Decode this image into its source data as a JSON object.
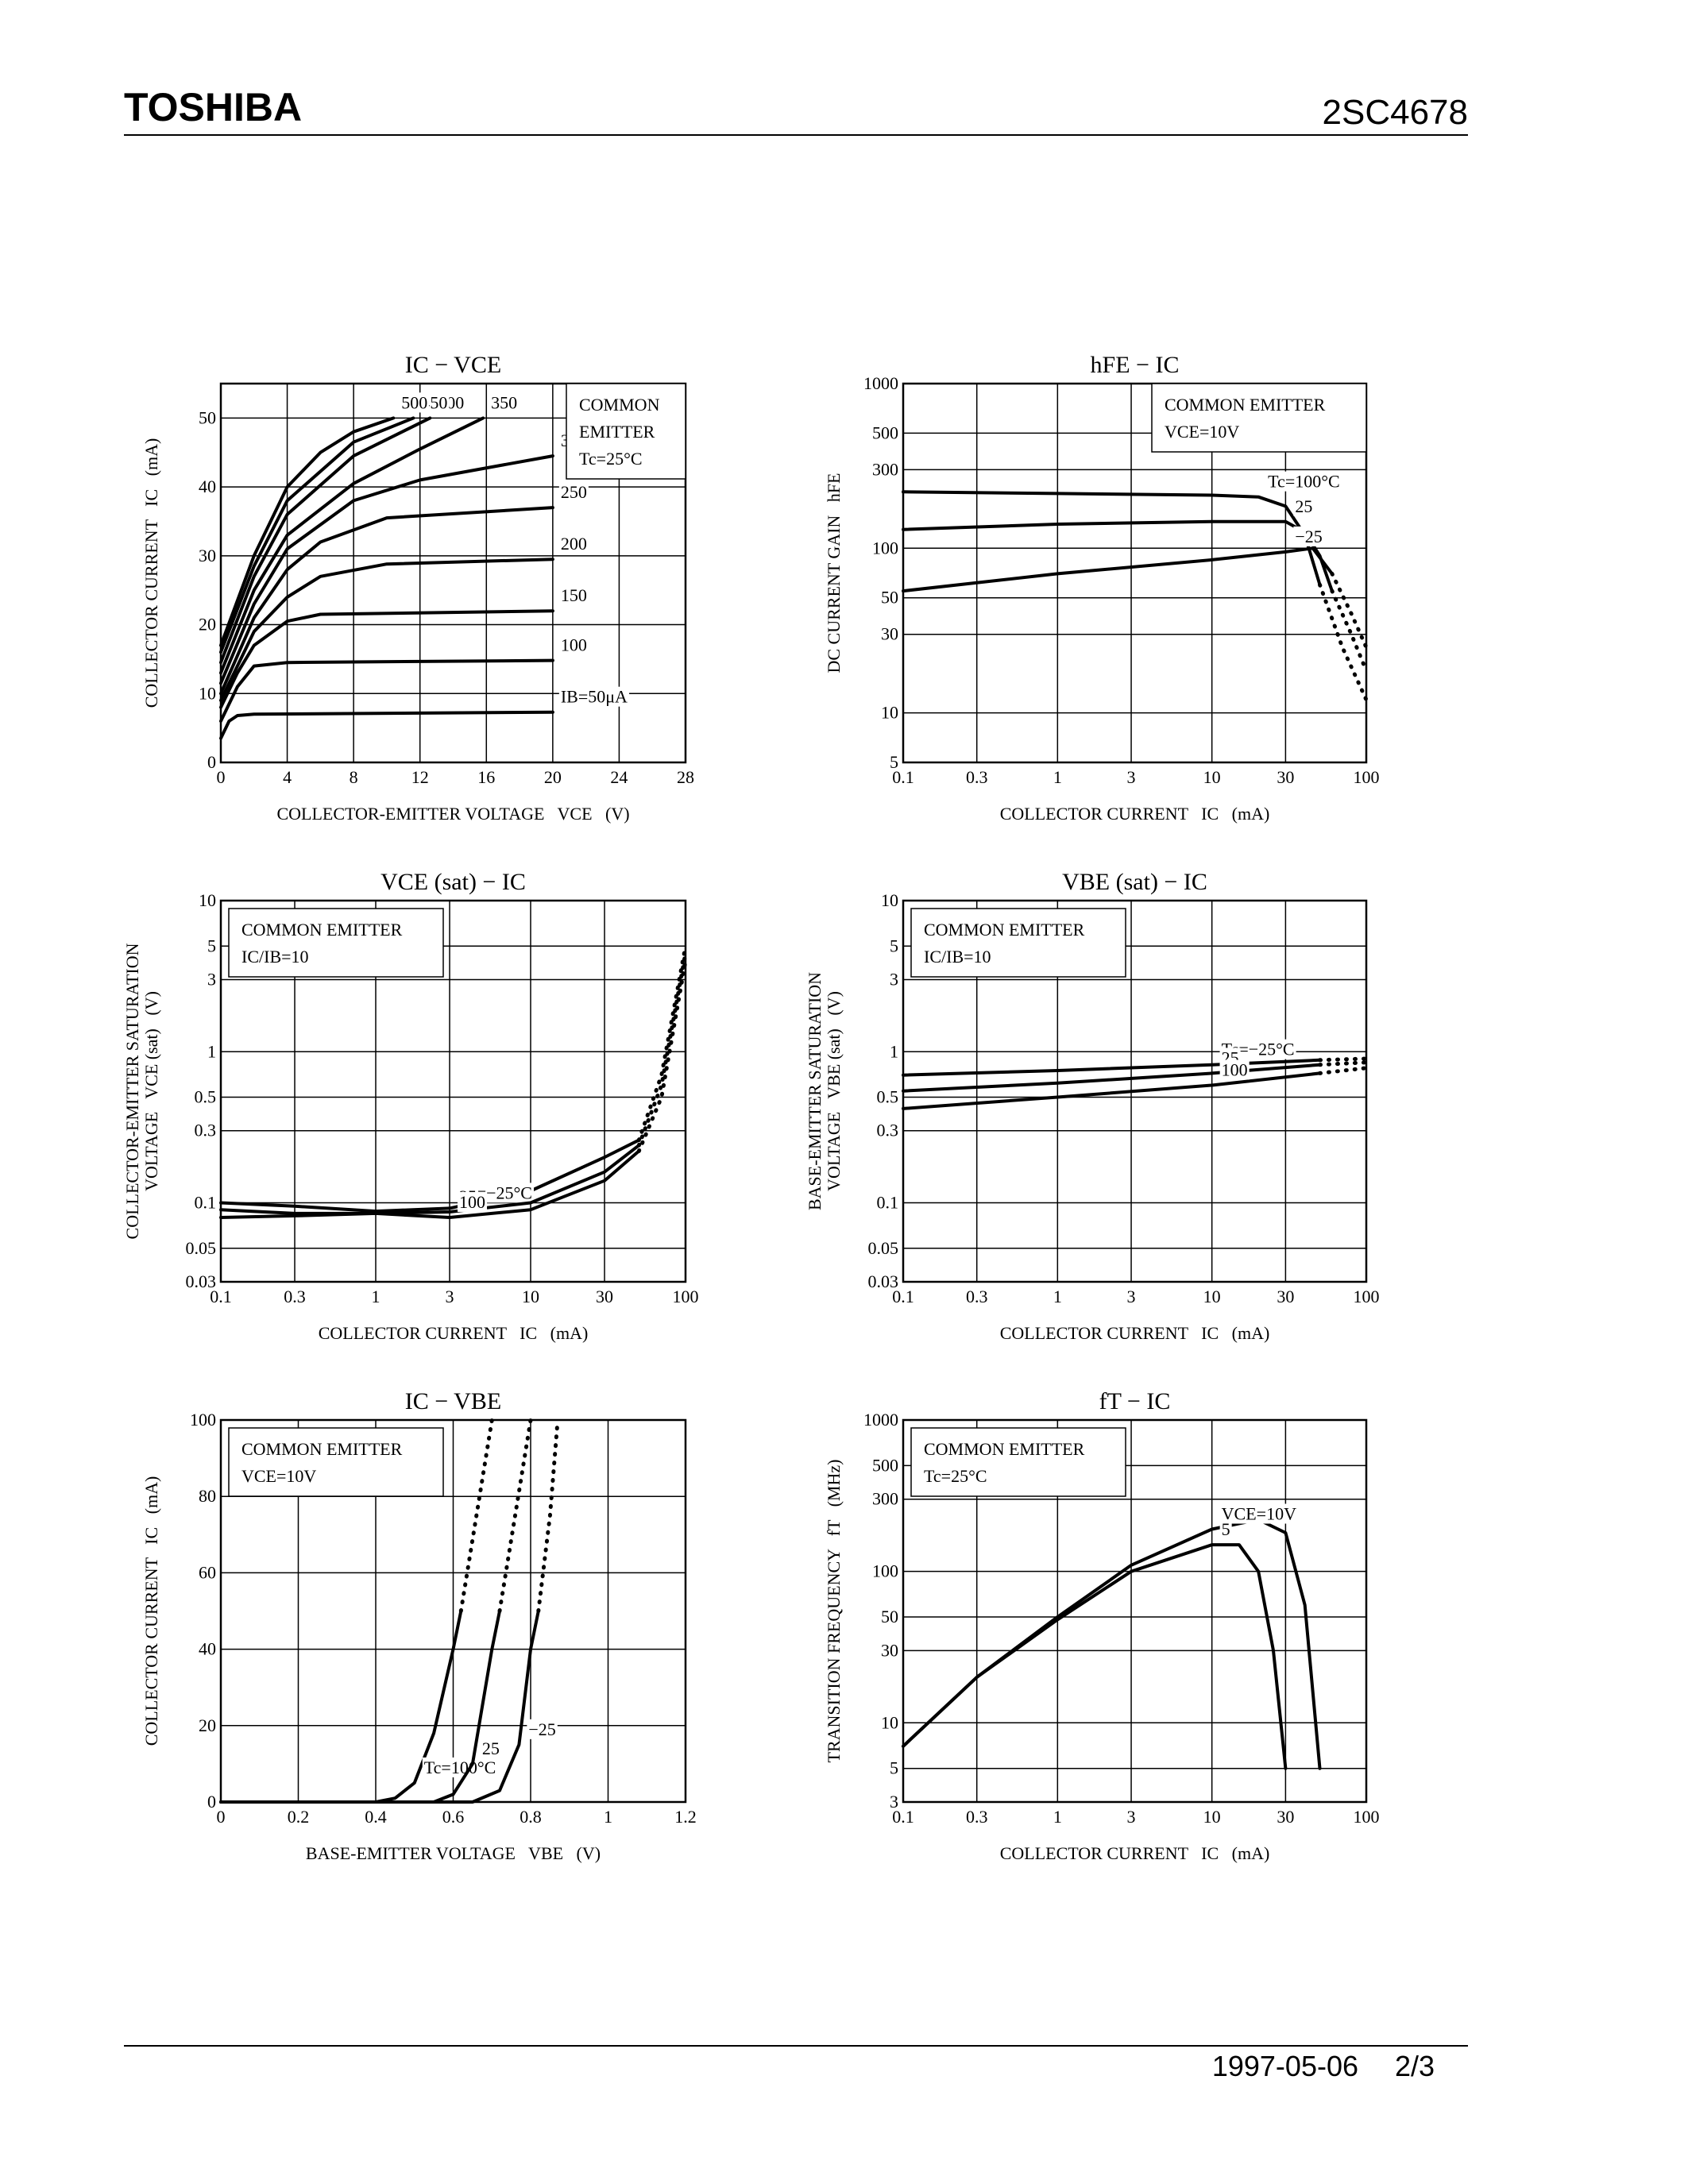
{
  "header": {
    "brand": "TOSHIBA",
    "part": "2SC4678"
  },
  "footer": {
    "date": "1997-05-06",
    "page": "2/3"
  },
  "chart_data": [
    {
      "type": "line",
      "title": "IC − VCE",
      "xlabel": "COLLECTOR-EMITTER VOLTAGE   VCE   (V)",
      "ylabel": [
        "COLLECTOR CURRENT   IC   (mA)"
      ],
      "note": [
        "COMMON",
        "EMITTER",
        "Tc=25°C"
      ],
      "xscale": "linear",
      "yscale": "linear",
      "xlim": [
        0,
        28
      ],
      "ylim": [
        0,
        55
      ],
      "xticks": [
        0,
        4,
        8,
        12,
        16,
        20,
        24,
        28
      ],
      "yticks": [
        0,
        10,
        20,
        30,
        40,
        50
      ],
      "grid": true,
      "series": [
        {
          "name": "IB=50μA",
          "color": "#000000",
          "x": [
            0,
            0.5,
            1,
            2,
            20
          ],
          "values": [
            3.5,
            6,
            6.8,
            7,
            7.3
          ]
        },
        {
          "name": "100",
          "color": "#000000",
          "x": [
            0,
            1,
            2,
            4,
            20
          ],
          "values": [
            6,
            11,
            14,
            14.5,
            14.8
          ]
        },
        {
          "name": "150",
          "color": "#000000",
          "x": [
            0,
            1,
            2,
            4,
            6,
            20
          ],
          "values": [
            8,
            13,
            17,
            20.5,
            21.5,
            22
          ]
        },
        {
          "name": "200",
          "color": "#000000",
          "x": [
            0,
            2,
            4,
            6,
            10,
            20
          ],
          "values": [
            9,
            19,
            24,
            27,
            28.8,
            29.5
          ]
        },
        {
          "name": "250",
          "color": "#000000",
          "x": [
            0,
            2,
            4,
            6,
            10,
            20
          ],
          "values": [
            10,
            21,
            28,
            32,
            35.5,
            37
          ]
        },
        {
          "name": "300",
          "color": "#000000",
          "x": [
            0,
            2,
            4,
            8,
            12,
            20
          ],
          "values": [
            11.5,
            23,
            31,
            38,
            41,
            44.5
          ]
        },
        {
          "name": "350",
          "color": "#000000",
          "x": [
            0,
            2,
            4,
            8,
            12,
            15.8
          ],
          "values": [
            13,
            25,
            33,
            40.5,
            45.5,
            50
          ]
        },
        {
          "name": "400",
          "color": "#000000",
          "x": [
            0,
            2,
            4,
            8,
            12.6
          ],
          "values": [
            14.5,
            27,
            36,
            44.5,
            50
          ]
        },
        {
          "name": "450",
          "color": "#000000",
          "x": [
            0,
            2,
            4,
            8,
            11.6
          ],
          "values": [
            16,
            28.5,
            38,
            46.5,
            50
          ]
        },
        {
          "name": "500",
          "color": "#000000",
          "x": [
            0,
            2,
            4,
            6,
            8,
            10.4
          ],
          "values": [
            17,
            30,
            40,
            45,
            48,
            50
          ]
        }
      ]
    },
    {
      "type": "line",
      "title": "hFE − IC",
      "xlabel": "COLLECTOR CURRENT   IC   (mA)",
      "ylabel": [
        "DC CURRENT GAIN   hFE"
      ],
      "note": [
        "COMMON EMITTER",
        "VCE=10V"
      ],
      "xscale": "log",
      "yscale": "log",
      "xlim": [
        0.1,
        100
      ],
      "ylim": [
        5,
        1000
      ],
      "xticks": [
        0.1,
        0.3,
        1,
        3,
        10,
        30,
        100
      ],
      "yticks": [
        5,
        10,
        30,
        50,
        100,
        300,
        500,
        1000
      ],
      "grid": true,
      "series": [
        {
          "name": "Tc=100°C",
          "color": "#000000",
          "x": [
            0.1,
            1,
            10,
            20,
            30,
            40,
            50
          ],
          "values": [
            220,
            215,
            210,
            205,
            180,
            120,
            60
          ]
        },
        {
          "color": "#000000",
          "style": "dotted",
          "x": [
            50,
            70,
            100
          ],
          "values": [
            60,
            25,
            12
          ]
        },
        {
          "name": "25",
          "color": "#000000",
          "x": [
            0.1,
            1,
            10,
            30,
            40,
            50,
            60
          ],
          "values": [
            130,
            140,
            145,
            145,
            125,
            90,
            55
          ]
        },
        {
          "color": "#000000",
          "style": "dotted",
          "x": [
            60,
            80,
            100
          ],
          "values": [
            55,
            30,
            18
          ]
        },
        {
          "name": "−25",
          "color": "#000000",
          "x": [
            0.1,
            1,
            10,
            30,
            45,
            60
          ],
          "values": [
            55,
            70,
            85,
            95,
            100,
            70
          ]
        },
        {
          "color": "#000000",
          "style": "dotted",
          "x": [
            60,
            80,
            100
          ],
          "values": [
            70,
            40,
            25
          ]
        }
      ]
    },
    {
      "type": "line",
      "title": "VCE (sat) − IC",
      "xlabel": "COLLECTOR CURRENT   IC   (mA)",
      "ylabel": [
        "COLLECTOR-EMITTER SATURATION",
        "VOLTAGE   VCE (sat)   (V)"
      ],
      "note": [
        "COMMON EMITTER",
        "IC/IB=10"
      ],
      "xscale": "log",
      "yscale": "log",
      "xlim": [
        0.1,
        100
      ],
      "ylim": [
        0.03,
        10
      ],
      "xticks": [
        0.1,
        0.3,
        1,
        3,
        10,
        30,
        100
      ],
      "yticks": [
        0.03,
        0.05,
        0.1,
        0.3,
        0.5,
        1,
        3,
        5,
        10
      ],
      "grid": true,
      "series": [
        {
          "name": "Tc=−25°C",
          "color": "#000000",
          "x": [
            0.1,
            0.3,
            1,
            3,
            10,
            30,
            50
          ],
          "values": [
            0.1,
            0.095,
            0.088,
            0.092,
            0.12,
            0.2,
            0.26
          ]
        },
        {
          "color": "#000000",
          "style": "dotted",
          "x": [
            50,
            70,
            100
          ],
          "values": [
            0.26,
            0.7,
            5
          ]
        },
        {
          "name": "25",
          "color": "#000000",
          "x": [
            0.1,
            0.3,
            1,
            3,
            10,
            30,
            50
          ],
          "values": [
            0.09,
            0.085,
            0.085,
            0.087,
            0.1,
            0.16,
            0.24
          ]
        },
        {
          "color": "#000000",
          "style": "dotted",
          "x": [
            50,
            70,
            100
          ],
          "values": [
            0.24,
            0.6,
            4.5
          ]
        },
        {
          "name": "100",
          "color": "#000000",
          "x": [
            0.1,
            0.3,
            1,
            3,
            10,
            30,
            50
          ],
          "values": [
            0.08,
            0.082,
            0.085,
            0.08,
            0.09,
            0.14,
            0.22
          ]
        },
        {
          "color": "#000000",
          "style": "dotted",
          "x": [
            50,
            70,
            100
          ],
          "values": [
            0.22,
            0.5,
            4
          ]
        }
      ]
    },
    {
      "type": "line",
      "title": "VBE (sat) − IC",
      "xlabel": "COLLECTOR CURRENT   IC   (mA)",
      "ylabel": [
        "BASE-EMITTER SATURATION",
        "VOLTAGE   VBE (sat)   (V)"
      ],
      "note": [
        "COMMON EMITTER",
        "IC/IB=10"
      ],
      "xscale": "log",
      "yscale": "log",
      "xlim": [
        0.1,
        100
      ],
      "ylim": [
        0.03,
        10
      ],
      "xticks": [
        0.1,
        0.3,
        1,
        3,
        10,
        30,
        100
      ],
      "yticks": [
        0.03,
        0.05,
        0.1,
        0.3,
        0.5,
        1,
        3,
        5,
        10
      ],
      "grid": true,
      "series": [
        {
          "name": "Tc=−25°C",
          "color": "#000000",
          "x": [
            0.1,
            1,
            10,
            50
          ],
          "values": [
            0.7,
            0.75,
            0.82,
            0.88
          ]
        },
        {
          "color": "#000000",
          "style": "dotted",
          "x": [
            50,
            100
          ],
          "values": [
            0.88,
            0.9
          ]
        },
        {
          "name": "25",
          "color": "#000000",
          "x": [
            0.1,
            1,
            10,
            50
          ],
          "values": [
            0.55,
            0.62,
            0.72,
            0.82
          ]
        },
        {
          "color": "#000000",
          "style": "dotted",
          "x": [
            50,
            100
          ],
          "values": [
            0.82,
            0.85
          ]
        },
        {
          "name": "100",
          "color": "#000000",
          "x": [
            0.1,
            1,
            10,
            50
          ],
          "values": [
            0.42,
            0.5,
            0.6,
            0.72
          ]
        },
        {
          "color": "#000000",
          "style": "dotted",
          "x": [
            50,
            100
          ],
          "values": [
            0.72,
            0.78
          ]
        }
      ]
    },
    {
      "type": "line",
      "title": "IC − VBE",
      "xlabel": "BASE-EMITTER VOLTAGE   VBE   (V)",
      "ylabel": [
        "COLLECTOR CURRENT   IC   (mA)"
      ],
      "note": [
        "COMMON EMITTER",
        "VCE=10V"
      ],
      "xscale": "linear",
      "yscale": "linear",
      "xlim": [
        0,
        1.2
      ],
      "ylim": [
        0,
        100
      ],
      "xticks": [
        0,
        0.2,
        0.4,
        0.6,
        0.8,
        1.0,
        1.2
      ],
      "yticks": [
        0,
        20,
        40,
        60,
        80,
        100
      ],
      "grid": true,
      "series": [
        {
          "name": "Tc=100°C",
          "color": "#000000",
          "x": [
            0,
            0.4,
            0.45,
            0.5,
            0.55,
            0.6,
            0.62
          ],
          "values": [
            0,
            0,
            1,
            5,
            18,
            40,
            50
          ]
        },
        {
          "color": "#000000",
          "style": "dotted",
          "x": [
            0.62,
            0.66,
            0.7
          ],
          "values": [
            50,
            75,
            100
          ]
        },
        {
          "name": "25",
          "color": "#000000",
          "x": [
            0,
            0.55,
            0.6,
            0.65,
            0.7,
            0.72
          ],
          "values": [
            0,
            0,
            2,
            10,
            40,
            50
          ]
        },
        {
          "color": "#000000",
          "style": "dotted",
          "x": [
            0.72,
            0.76,
            0.8
          ],
          "values": [
            50,
            75,
            100
          ]
        },
        {
          "name": "−25",
          "color": "#000000",
          "x": [
            0,
            0.65,
            0.72,
            0.77,
            0.8,
            0.82
          ],
          "values": [
            0,
            0,
            3,
            15,
            40,
            50
          ]
        },
        {
          "color": "#000000",
          "style": "dotted",
          "x": [
            0.82,
            0.85,
            0.87
          ],
          "values": [
            50,
            75,
            100
          ]
        }
      ]
    },
    {
      "type": "line",
      "title": "fT − IC",
      "xlabel": "COLLECTOR CURRENT   IC   (mA)",
      "ylabel": [
        "TRANSITION FREQUENCY   fT   (MHz)"
      ],
      "note": [
        "COMMON EMITTER",
        "Tc=25°C"
      ],
      "xscale": "log",
      "yscale": "log",
      "xlim": [
        0.1,
        100
      ],
      "ylim": [
        3,
        1000
      ],
      "xticks": [
        0.1,
        0.3,
        1,
        3,
        10,
        30,
        100
      ],
      "yticks": [
        3,
        5,
        10,
        30,
        50,
        100,
        300,
        500,
        1000
      ],
      "grid": true,
      "series": [
        {
          "name": "VCE=10V",
          "color": "#000000",
          "x": [
            0.1,
            0.3,
            1,
            3,
            10,
            20,
            30,
            40,
            50
          ],
          "values": [
            7,
            20,
            50,
            110,
            190,
            220,
            180,
            60,
            5
          ]
        },
        {
          "name": "5",
          "color": "#000000",
          "x": [
            0.1,
            0.3,
            1,
            3,
            10,
            15,
            20,
            25,
            30
          ],
          "values": [
            7,
            20,
            48,
            100,
            150,
            150,
            100,
            30,
            5
          ]
        }
      ]
    }
  ]
}
